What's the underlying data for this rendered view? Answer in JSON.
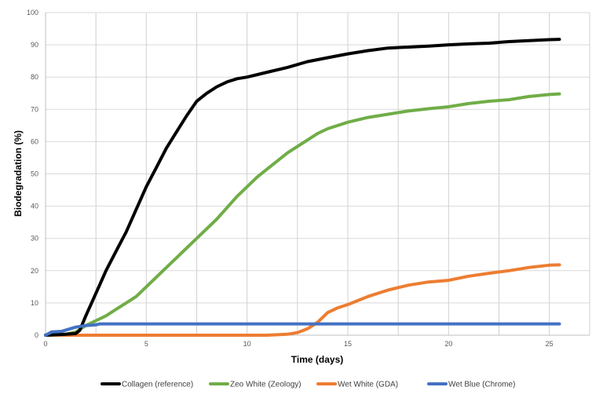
{
  "chart_data": {
    "type": "line",
    "title": "",
    "xlabel": "Time (days)",
    "ylabel": "Biodegradation (%)",
    "xlim": [
      0,
      27
    ],
    "ylim": [
      0,
      100
    ],
    "xticks": [
      0,
      5,
      10,
      15,
      20,
      25
    ],
    "yticks": [
      0,
      10,
      20,
      30,
      40,
      50,
      60,
      70,
      80,
      90,
      100
    ],
    "x_gridlines": [
      0,
      2.5,
      5,
      7.5,
      10,
      12.5,
      15,
      17.5,
      20,
      22.5,
      25
    ],
    "grid": true,
    "legend_position": "bottom",
    "series": [
      {
        "name": "Collagen (reference)",
        "color": "#000000",
        "x": [
          0,
          1,
          1.5,
          1.7,
          2,
          2.5,
          3,
          3.5,
          4,
          4.5,
          5,
          5.5,
          6,
          6.5,
          7,
          7.5,
          8,
          8.5,
          9,
          9.5,
          10,
          11,
          12,
          13,
          14,
          15,
          16,
          17,
          18,
          19,
          20,
          21,
          22,
          23,
          24,
          25,
          25.5
        ],
        "y": [
          0,
          0.3,
          0.5,
          1.5,
          6,
          13,
          20,
          26,
          32,
          39,
          46,
          52,
          58,
          63,
          68,
          72.5,
          75,
          77,
          78.5,
          79.5,
          80,
          81.5,
          83,
          84.8,
          86,
          87.2,
          88.2,
          89,
          89.3,
          89.6,
          90,
          90.3,
          90.5,
          91,
          91.3,
          91.6,
          91.7
        ]
      },
      {
        "name": "Zeo White (Zeology)",
        "color": "#70AD47",
        "x": [
          0,
          1,
          1.5,
          2,
          2.5,
          3,
          3.5,
          4,
          4.5,
          5,
          5.5,
          6,
          6.5,
          7,
          7.5,
          8,
          8.5,
          9,
          9.5,
          10,
          10.5,
          11,
          11.5,
          12,
          12.5,
          13,
          13.5,
          14,
          15,
          16,
          17,
          18,
          19,
          20,
          21,
          22,
          23,
          24,
          25,
          25.5
        ],
        "y": [
          0,
          0.3,
          1,
          3,
          4.5,
          6,
          8,
          10,
          12,
          15,
          18,
          21,
          24,
          27,
          30,
          33,
          36,
          39.5,
          43,
          46,
          49,
          51.5,
          54,
          56.5,
          58.5,
          60.5,
          62.5,
          64,
          66,
          67.5,
          68.5,
          69.5,
          70.2,
          70.8,
          71.8,
          72.5,
          73,
          74,
          74.6,
          74.8
        ]
      },
      {
        "name": "Wet White (GDA)",
        "color": "#ED7D31",
        "x": [
          0,
          5,
          11,
          12,
          12.5,
          13,
          13.5,
          14,
          14.5,
          15,
          16,
          17,
          18,
          19,
          20,
          21,
          22,
          23,
          24,
          25,
          25.5
        ],
        "y": [
          0,
          0,
          0,
          0.3,
          0.8,
          2,
          4,
          7,
          8.5,
          9.5,
          12,
          14,
          15.5,
          16.5,
          17,
          18.3,
          19.2,
          20,
          21,
          21.7,
          21.8
        ]
      },
      {
        "name": "Wet Blue (Chrome)",
        "color": "#4472C4",
        "x": [
          0,
          0.3,
          0.8,
          1.5,
          2,
          2.5,
          2.7,
          10,
          20,
          25.5
        ],
        "y": [
          0,
          1,
          1.2,
          2.5,
          3,
          3.2,
          3.5,
          3.5,
          3.5,
          3.5
        ]
      }
    ]
  }
}
